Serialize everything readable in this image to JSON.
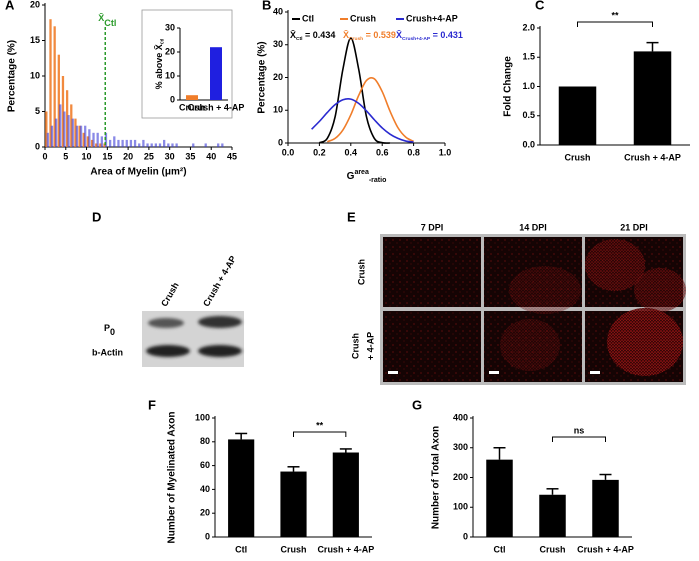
{
  "chart_data": [
    {
      "type": "histogram",
      "panel": "A",
      "ylabel": "Percentage (%)",
      "xlabel": "Area of Myelin (μm²)",
      "bins": [
        0,
        1,
        2,
        3,
        4,
        5,
        6,
        7,
        8,
        9,
        10,
        11,
        12,
        13,
        14,
        15,
        16,
        17,
        18,
        19,
        20,
        21,
        22,
        23,
        24,
        25,
        26,
        27,
        28,
        29,
        30,
        31,
        32,
        33,
        34,
        35,
        36,
        37,
        38,
        39,
        40,
        41,
        42,
        43,
        44
      ],
      "series": [
        {
          "color": "#f07d2a",
          "values": [
            5,
            18,
            17,
            13,
            10,
            8,
            6,
            4,
            3,
            2,
            1.5,
            1,
            0.5,
            0.5,
            0.5,
            0,
            0,
            0,
            0,
            0,
            0,
            0,
            0,
            0,
            0,
            0,
            0,
            0,
            0,
            0,
            0,
            0,
            0,
            0,
            0,
            0,
            0,
            0,
            0,
            0,
            0,
            0,
            0,
            0
          ]
        },
        {
          "color": "#3a3ad6",
          "values": [
            2,
            3,
            4,
            6,
            5,
            4.5,
            4,
            3,
            3,
            3,
            2.5,
            2,
            2,
            1.5,
            2,
            1,
            1.5,
            1,
            1,
            1,
            1,
            1,
            0.5,
            1,
            0.5,
            0.5,
            0.5,
            0.5,
            1,
            0.5,
            0.5,
            0.5,
            0,
            0,
            0,
            0.5,
            0,
            0,
            0.5,
            0,
            0,
            0.5,
            0.5,
            0
          ]
        }
      ],
      "xlim": [
        0,
        45
      ],
      "xticks": [
        0,
        5,
        10,
        15,
        20,
        25,
        30,
        35,
        40,
        45
      ],
      "ylim": [
        0,
        20
      ],
      "yticks": [
        0,
        5,
        10,
        15,
        20
      ],
      "annotation": {
        "text": "X̄",
        "sub": "Ctl",
        "x": 14.5,
        "color": "#2a9a2a"
      }
    },
    {
      "type": "bar",
      "ylabel": {
        "text": "% above X̄",
        "sub": "Ctl"
      },
      "categories": [
        "Crush",
        "Crush + 4-AP"
      ],
      "values": [
        2,
        22
      ],
      "colors": [
        "#f07d2a",
        "#1f1fe0"
      ],
      "ylim": [
        0,
        30
      ],
      "yticks": [
        0,
        10,
        20,
        30
      ]
    },
    {
      "type": "line",
      "panel": "B",
      "ylabel": "Percentage (%)",
      "xlabel": {
        "text": "G",
        "sup": "area",
        "sub": "-ratio"
      },
      "x": [
        0.15,
        0.2,
        0.25,
        0.3,
        0.35,
        0.4,
        0.45,
        0.5,
        0.55,
        0.6,
        0.65,
        0.7,
        0.75,
        0.8
      ],
      "series": [
        {
          "name": "Ctl",
          "color": "#000000",
          "values": [
            null,
            0.1,
            1.4,
            8,
            22.6,
            32,
            22.6,
            8,
            1.4,
            0.1,
            0,
            null,
            null,
            null
          ]
        },
        {
          "name": "Crush",
          "color": "#f07d2a",
          "values": [
            null,
            null,
            0.4,
            1.4,
            4,
            8.6,
            14.5,
            19.1,
            19.6,
            15.7,
            9.7,
            4.7,
            1.8,
            0.5
          ]
        },
        {
          "name": "Crush+4-AP",
          "color": "#2a2ad0",
          "values": [
            4.2,
            6.6,
            9.3,
            11.7,
            13.2,
            13.4,
            12.1,
            9.8,
            7.1,
            4.6,
            2.7,
            1.4,
            0.6,
            0.3
          ]
        }
      ],
      "annotations": [
        {
          "text": "X̄",
          "sub": "Ctl",
          "after": " = 0.434",
          "color": "#000000"
        },
        {
          "text": "X̄",
          "sub": "Crush",
          "after": " = 0.539",
          "color": "#f07d2a"
        },
        {
          "text": "X̄",
          "sub": "Crush+4-AP",
          "after": " = 0.431",
          "color": "#2a2ad0"
        }
      ],
      "xlim": [
        0,
        1
      ],
      "xticks": [
        {
          "value": 0,
          "label": "0.0"
        },
        0.2,
        0.4,
        0.6,
        0.8,
        {
          "value": 1,
          "label": "1.0"
        }
      ],
      "ylim": [
        0,
        40
      ],
      "yticks": [
        0,
        10,
        20,
        30,
        40
      ]
    },
    {
      "type": "bar",
      "panel": "C",
      "ylabel": "Fold Change",
      "categories": [
        "Crush",
        "Crush + 4-AP"
      ],
      "values": [
        1.0,
        1.6
      ],
      "errors": [
        null,
        0.15
      ],
      "color": "#000000",
      "ylim": [
        0,
        2
      ],
      "yticks": [
        {
          "value": 0,
          "label": "0.0"
        },
        0.5,
        {
          "value": 1,
          "label": "1.0"
        },
        1.5,
        {
          "value": 2,
          "label": "2.0"
        }
      ],
      "significance": "**"
    },
    {
      "type": "bar",
      "panel": "F",
      "ylabel": "Number of Myelinated Axon",
      "categories": [
        "Ctl",
        "Crush",
        "Crush + 4-AP"
      ],
      "values": [
        82,
        55,
        71
      ],
      "errors": [
        5,
        4,
        3
      ],
      "color": "#000000",
      "ylim": [
        0,
        100
      ],
      "yticks": [
        0,
        20,
        40,
        60,
        80,
        100
      ],
      "significance": "**"
    },
    {
      "type": "bar",
      "panel": "G",
      "ylabel": "Number of Total Axon",
      "categories": [
        "Ctl",
        "Crush",
        "Crush + 4-AP"
      ],
      "values": [
        260,
        142,
        192
      ],
      "errors": [
        40,
        20,
        18
      ],
      "color": "#000000",
      "ylim": [
        0,
        400
      ],
      "yticks": [
        0,
        100,
        200,
        300,
        400
      ],
      "significance": "ns"
    }
  ],
  "blot": {
    "panel": "D",
    "lanes": [
      "Crush",
      "Crush + 4-AP"
    ],
    "bands": [
      {
        "text": "P",
        "sub": "0"
      },
      {
        "text": "b-Actin"
      }
    ]
  },
  "micrographs": {
    "panel": "E",
    "columns": [
      "7 DPI",
      "14 DPI",
      "21 DPI"
    ],
    "rows": [
      [
        "Crush"
      ],
      [
        "Crush",
        "+ 4-AP"
      ]
    ]
  }
}
